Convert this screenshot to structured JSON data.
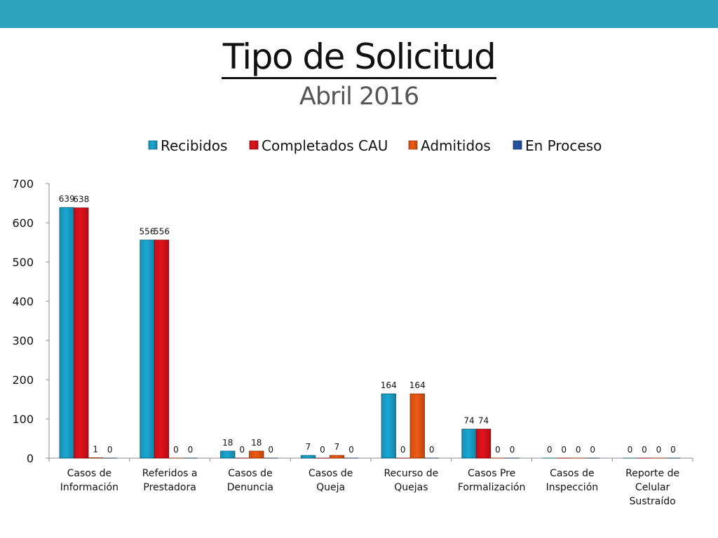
{
  "header": {
    "title": "Tipo de Solicitud",
    "subtitle": "Abril 2016"
  },
  "colors": {
    "top_bar": "#2ea3bf",
    "axis": "#8c8c8c"
  },
  "chart_data": {
    "type": "bar",
    "title": "",
    "xlabel": "",
    "ylabel": "",
    "ylim": [
      0,
      700
    ],
    "yticks": [
      0,
      100,
      200,
      300,
      400,
      500,
      600,
      700
    ],
    "grid": false,
    "legend_position": "top",
    "categories": [
      [
        "Casos de",
        "Información"
      ],
      [
        "Referidos a",
        "Prestadora"
      ],
      [
        "Casos de",
        "Denuncia"
      ],
      [
        "Casos de",
        "Queja"
      ],
      [
        "Recurso de",
        "Quejas"
      ],
      [
        "Casos Pre",
        "Formalización"
      ],
      [
        "Casos de",
        "Inspección"
      ],
      [
        "Reporte de",
        "Celular",
        "Sustraído"
      ]
    ],
    "series": [
      {
        "name": "Recibidos",
        "color": "#1aa8d2",
        "values": [
          639,
          556,
          18,
          7,
          164,
          74,
          0,
          0
        ]
      },
      {
        "name": "Completados CAU",
        "color": "#e3121c",
        "values": [
          638,
          556,
          0,
          0,
          0,
          74,
          0,
          0
        ]
      },
      {
        "name": "Admitidos",
        "color": "#f05a14",
        "values": [
          1,
          0,
          18,
          7,
          164,
          0,
          0,
          0
        ]
      },
      {
        "name": "En Proceso",
        "color": "#2457a8",
        "values": [
          0,
          0,
          0,
          0,
          0,
          0,
          0,
          0
        ]
      }
    ],
    "data_labels": [
      [
        "639",
        "638",
        "1",
        "0"
      ],
      [
        "556",
        "556",
        "0",
        "0"
      ],
      [
        "18",
        "0",
        "18",
        "0"
      ],
      [
        "7",
        "0",
        "7",
        "0"
      ],
      [
        "164",
        "0",
        "164",
        "0"
      ],
      [
        "74",
        "74",
        "0",
        "0"
      ],
      [
        "0",
        "0",
        "0",
        "0"
      ],
      [
        "0",
        "0",
        "0",
        "0"
      ]
    ]
  }
}
